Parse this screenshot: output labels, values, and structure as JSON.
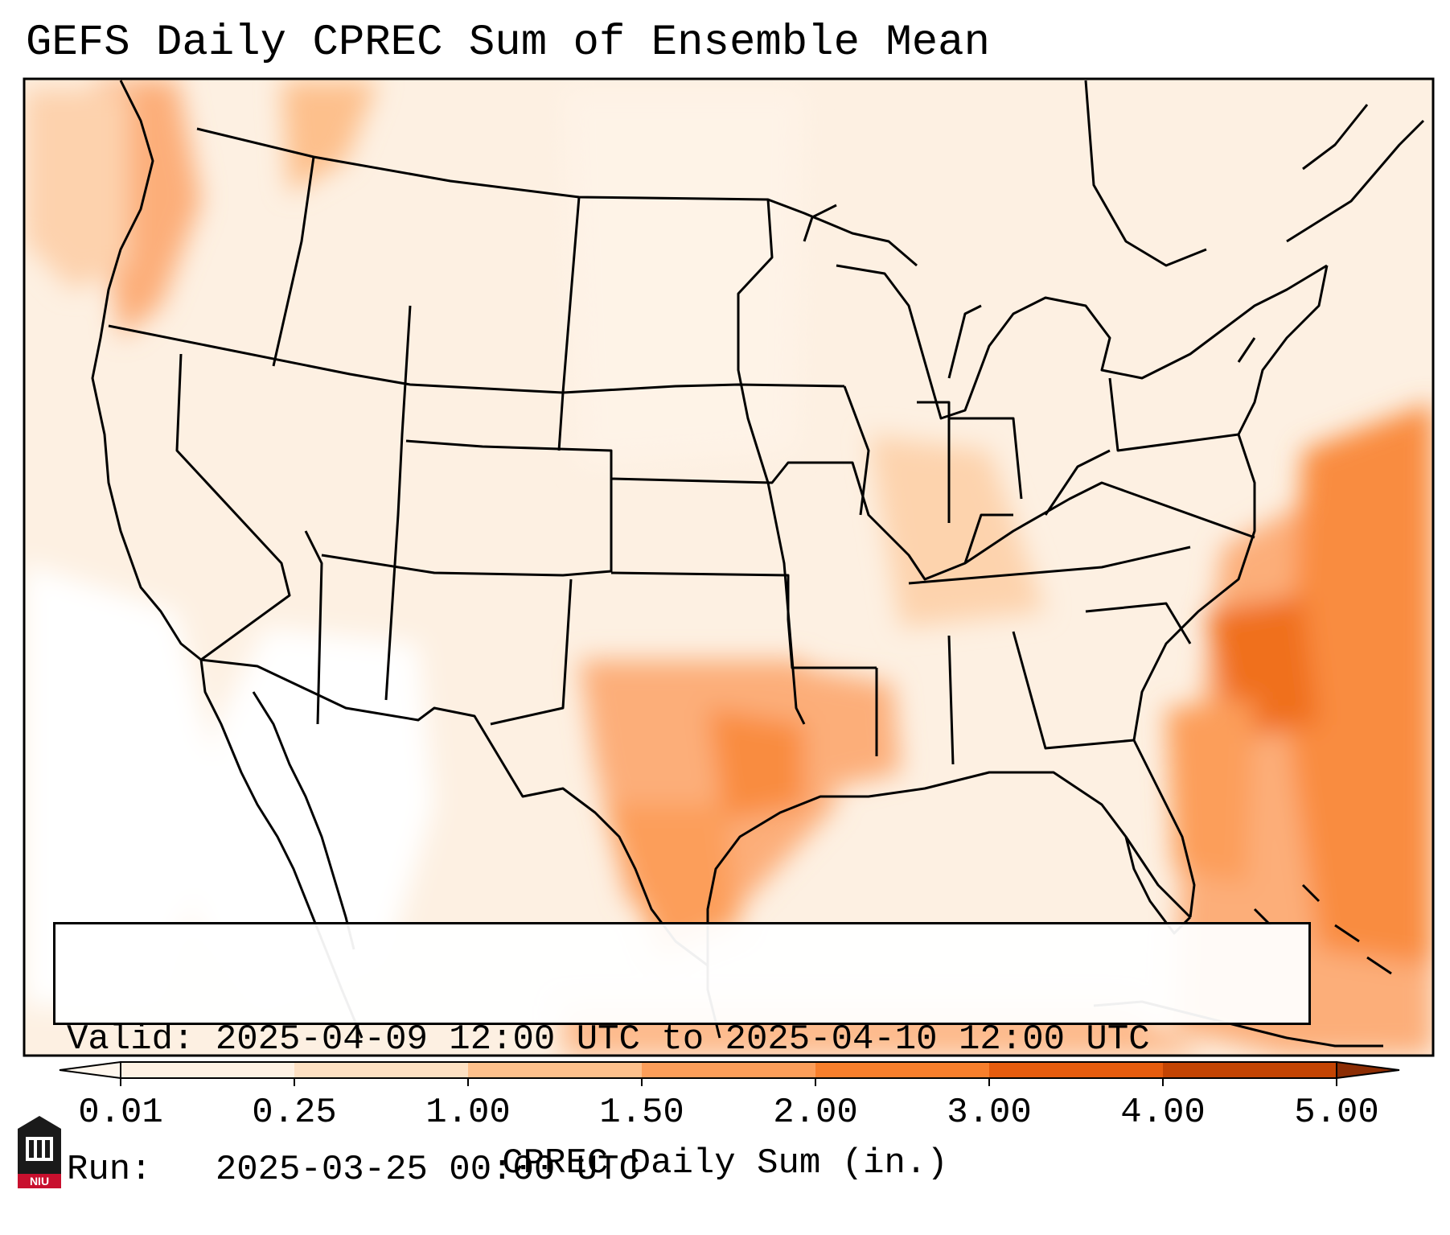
{
  "title": "GEFS Daily CPREC Sum of Ensemble Mean",
  "valid_label": "Valid:",
  "valid_text": "2025-04-09 12:00 UTC to 2025-04-10 12:00 UTC",
  "run_label": "Run:",
  "run_text": "2025-03-25 00:00 UTC",
  "colorbar": {
    "label": "CPREC Daily Sum (in.)",
    "ticks": [
      "0.01",
      "0.25",
      "1.00",
      "1.50",
      "2.00",
      "3.00",
      "4.00",
      "5.00"
    ],
    "colors": [
      "#fef1e3",
      "#fde0c2",
      "#fdc08c",
      "#fc9e5a",
      "#f87f2c",
      "#e65c0e",
      "#c34403"
    ],
    "under_color": "#fff7ee",
    "over_color": "#8c2d04"
  },
  "logo_text": "NIU"
}
